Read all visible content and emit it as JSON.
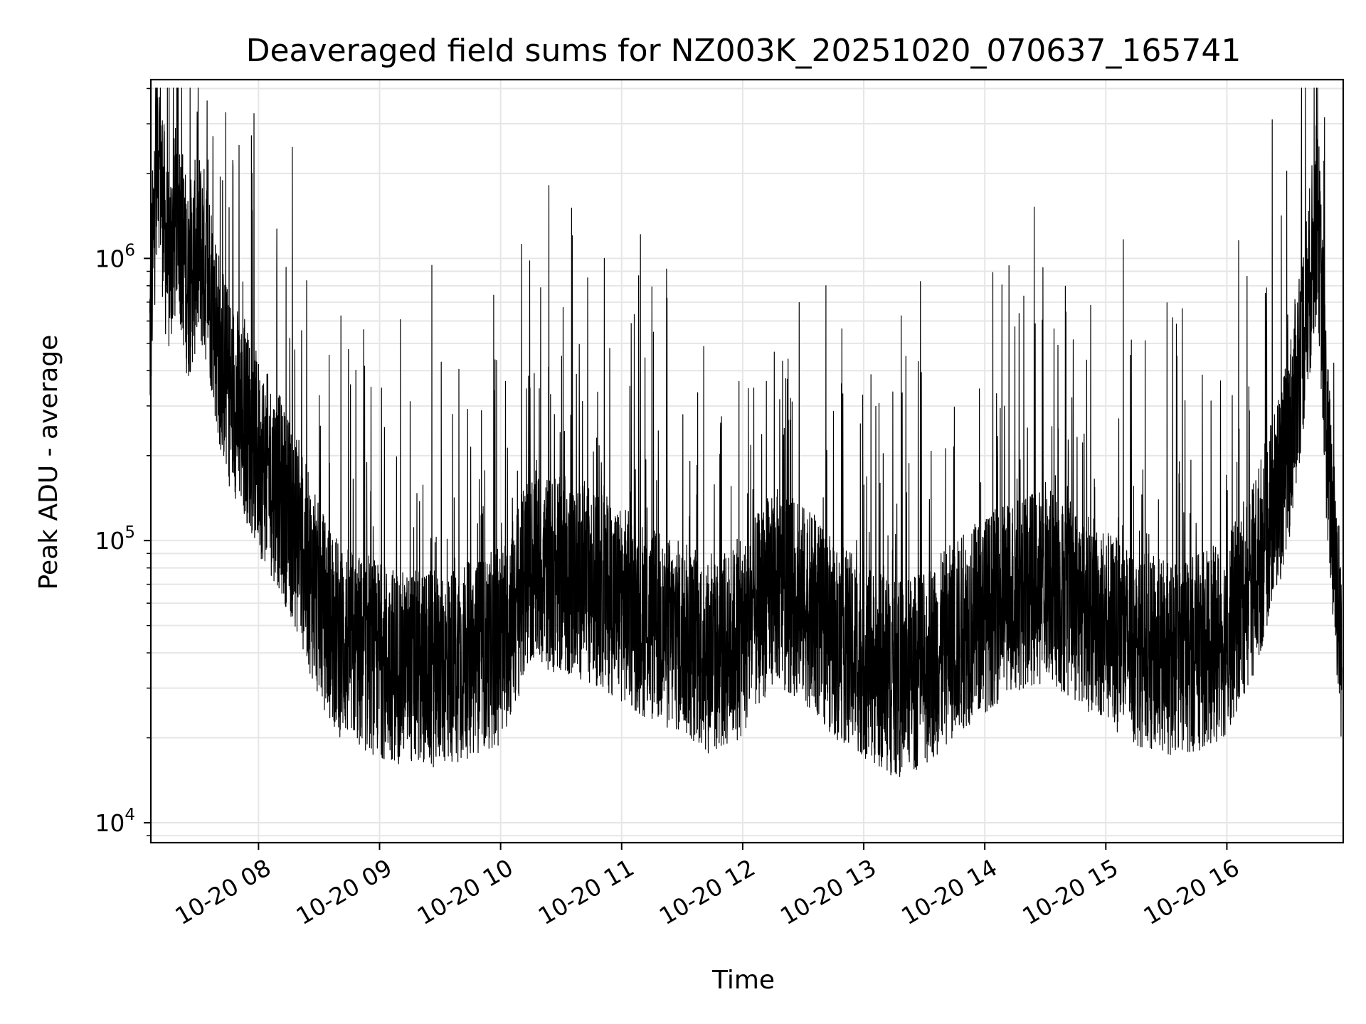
{
  "chart_data": {
    "type": "line",
    "title": "Deaveraged field sums for NZ003K_20251020_070637_165741",
    "xlabel": "Time",
    "ylabel": "Peak ADU - average",
    "x_range": [
      "2025-10-20 07:06:37",
      "2025-10-20 16:57:41"
    ],
    "x_ticks": [
      {
        "value": "2025-10-20 08:00",
        "label": "10-20 08"
      },
      {
        "value": "2025-10-20 09:00",
        "label": "10-20 09"
      },
      {
        "value": "2025-10-20 10:00",
        "label": "10-20 10"
      },
      {
        "value": "2025-10-20 11:00",
        "label": "10-20 11"
      },
      {
        "value": "2025-10-20 12:00",
        "label": "10-20 12"
      },
      {
        "value": "2025-10-20 13:00",
        "label": "10-20 13"
      },
      {
        "value": "2025-10-20 14:00",
        "label": "10-20 14"
      },
      {
        "value": "2025-10-20 15:00",
        "label": "10-20 15"
      },
      {
        "value": "2025-10-20 16:00",
        "label": "10-20 16"
      }
    ],
    "y_scale": "log",
    "ylim": [
      8500,
      4300000
    ],
    "y_ticks": [
      {
        "value": 10000,
        "base": "10",
        "exp": "4"
      },
      {
        "value": 100000,
        "base": "10",
        "exp": "5"
      },
      {
        "value": 1000000,
        "base": "10",
        "exp": "6"
      }
    ],
    "grid": true,
    "line_color": "#000000",
    "series": [
      {
        "points": [
          [
            "2025-10-20 07:06",
            500000
          ],
          [
            "2025-10-20 07:10",
            2800000
          ],
          [
            "2025-10-20 07:15",
            900000
          ],
          [
            "2025-10-20 07:20",
            1500000
          ],
          [
            "2025-10-20 07:25",
            800000
          ],
          [
            "2025-10-20 07:30",
            1100000
          ],
          [
            "2025-10-20 07:35",
            900000
          ],
          [
            "2025-10-20 07:40",
            500000
          ],
          [
            "2025-10-20 07:45",
            350000
          ],
          [
            "2025-10-20 07:50",
            300000
          ],
          [
            "2025-10-20 07:55",
            250000
          ],
          [
            "2025-10-20 08:00",
            200000
          ],
          [
            "2025-10-20 08:10",
            150000
          ],
          [
            "2025-10-20 08:20",
            100000
          ],
          [
            "2025-10-20 08:30",
            60000
          ],
          [
            "2025-10-20 08:40",
            45000
          ],
          [
            "2025-10-20 08:50",
            40000
          ],
          [
            "2025-10-20 09:00",
            38000
          ],
          [
            "2025-10-20 09:15",
            35000
          ],
          [
            "2025-10-20 09:30",
            35000
          ],
          [
            "2025-10-20 09:45",
            38000
          ],
          [
            "2025-10-20 10:00",
            42000
          ],
          [
            "2025-10-20 10:15",
            80000
          ],
          [
            "2025-10-20 10:30",
            75000
          ],
          [
            "2025-10-20 10:45",
            70000
          ],
          [
            "2025-10-20 11:00",
            60000
          ],
          [
            "2025-10-20 11:15",
            50000
          ],
          [
            "2025-10-20 11:30",
            45000
          ],
          [
            "2025-10-20 11:45",
            38000
          ],
          [
            "2025-10-20 12:00",
            45000
          ],
          [
            "2025-10-20 12:15",
            70000
          ],
          [
            "2025-10-20 12:30",
            60000
          ],
          [
            "2025-10-20 12:45",
            45000
          ],
          [
            "2025-10-20 13:00",
            38000
          ],
          [
            "2025-10-20 13:15",
            32000
          ],
          [
            "2025-10-20 13:30",
            35000
          ],
          [
            "2025-10-20 13:45",
            45000
          ],
          [
            "2025-10-20 14:00",
            55000
          ],
          [
            "2025-10-20 14:15",
            65000
          ],
          [
            "2025-10-20 14:30",
            70000
          ],
          [
            "2025-10-20 14:45",
            60000
          ],
          [
            "2025-10-20 15:00",
            50000
          ],
          [
            "2025-10-20 15:15",
            42000
          ],
          [
            "2025-10-20 15:30",
            38000
          ],
          [
            "2025-10-20 15:45",
            40000
          ],
          [
            "2025-10-20 16:00",
            45000
          ],
          [
            "2025-10-20 16:15",
            80000
          ],
          [
            "2025-10-20 16:30",
            200000
          ],
          [
            "2025-10-20 16:40",
            700000
          ],
          [
            "2025-10-20 16:45",
            1500000
          ],
          [
            "2025-10-20 16:50",
            200000
          ],
          [
            "2025-10-20 16:57",
            40000
          ]
        ]
      }
    ]
  }
}
